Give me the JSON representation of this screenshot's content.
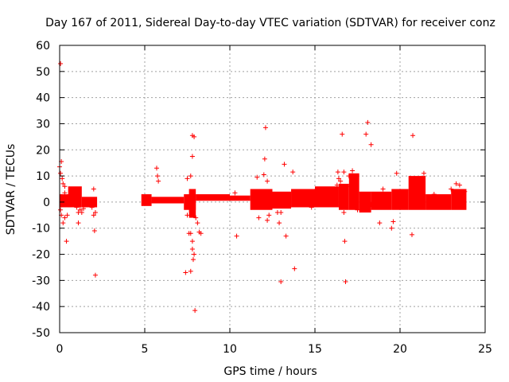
{
  "chart_data": {
    "type": "scatter",
    "title": "Day 167 of 2011, Sidereal Day-to-day VTEC variation (SDTVAR) for receiver conz",
    "xlabel": "GPS time / hours",
    "ylabel": "SDTVAR / TECUs",
    "xlim": [
      0,
      25
    ],
    "ylim": [
      -50,
      60
    ],
    "xticks": [
      0,
      5,
      10,
      15,
      20,
      25
    ],
    "yticks": [
      -50,
      -40,
      -30,
      -20,
      -10,
      0,
      10,
      20,
      30,
      40,
      50,
      60
    ],
    "grid": true,
    "marker": "+",
    "colors": {
      "series": "#ff0000",
      "grid": "#a0a0a0",
      "axes": "#000000",
      "background": "#ffffff"
    },
    "dense_bands": [
      {
        "x": [
          0.0,
          0.7
        ],
        "ymin": -2,
        "ymax": 3
      },
      {
        "x": [
          0.5,
          1.3
        ],
        "ymin": -2,
        "ymax": 6
      },
      {
        "x": [
          1.3,
          2.2
        ],
        "ymin": -2,
        "ymax": 2
      },
      {
        "x": [
          4.8,
          5.4
        ],
        "ymin": -1.5,
        "ymax": 3
      },
      {
        "x": [
          5.4,
          7.3
        ],
        "ymin": -0.5,
        "ymax": 2
      },
      {
        "x": [
          7.3,
          8.0
        ],
        "ymin": -3,
        "ymax": 3
      },
      {
        "x": [
          7.6,
          8.0
        ],
        "ymin": -6,
        "ymax": 5
      },
      {
        "x": [
          8.0,
          10.0
        ],
        "ymin": 0.5,
        "ymax": 3
      },
      {
        "x": [
          10.0,
          11.2
        ],
        "ymin": 0.5,
        "ymax": 2.5
      },
      {
        "x": [
          11.2,
          12.5
        ],
        "ymin": -3,
        "ymax": 5
      },
      {
        "x": [
          12.5,
          13.6
        ],
        "ymin": -2.5,
        "ymax": 4
      },
      {
        "x": [
          13.6,
          15.0
        ],
        "ymin": -2,
        "ymax": 5
      },
      {
        "x": [
          15.0,
          16.4
        ],
        "ymin": -2,
        "ymax": 6
      },
      {
        "x": [
          16.4,
          17.0
        ],
        "ymin": -3,
        "ymax": 7
      },
      {
        "x": [
          17.0,
          17.6
        ],
        "ymin": -3,
        "ymax": 11
      },
      {
        "x": [
          17.6,
          18.3
        ],
        "ymin": -4,
        "ymax": 4
      },
      {
        "x": [
          18.3,
          19.5
        ],
        "ymin": -3,
        "ymax": 4
      },
      {
        "x": [
          19.5,
          20.5
        ],
        "ymin": -3,
        "ymax": 5
      },
      {
        "x": [
          20.5,
          21.5
        ],
        "ymin": -3,
        "ymax": 10
      },
      {
        "x": [
          21.5,
          23.0
        ],
        "ymin": -3,
        "ymax": 3
      },
      {
        "x": [
          23.0,
          23.9
        ],
        "ymin": -3,
        "ymax": 5
      }
    ],
    "points": [
      [
        0.05,
        53
      ],
      [
        0.0,
        13.5
      ],
      [
        0.1,
        15.5
      ],
      [
        0.05,
        11
      ],
      [
        0.15,
        9
      ],
      [
        0.2,
        7
      ],
      [
        0.3,
        6
      ],
      [
        0.05,
        -3
      ],
      [
        0.1,
        -5
      ],
      [
        0.2,
        -8
      ],
      [
        0.3,
        -6
      ],
      [
        0.4,
        -15
      ],
      [
        0.45,
        -5
      ],
      [
        0.3,
        3.5
      ],
      [
        1.0,
        -2
      ],
      [
        1.1,
        -4
      ],
      [
        1.2,
        -3
      ],
      [
        1.1,
        -8
      ],
      [
        1.3,
        -4
      ],
      [
        1.4,
        -2.5
      ],
      [
        1.9,
        -2
      ],
      [
        2.0,
        5
      ],
      [
        2.0,
        -5
      ],
      [
        2.05,
        -11
      ],
      [
        2.1,
        -4
      ],
      [
        2.1,
        -28
      ],
      [
        5.0,
        2
      ],
      [
        5.2,
        -0.5
      ],
      [
        5.7,
        13
      ],
      [
        5.75,
        10
      ],
      [
        5.8,
        8
      ],
      [
        7.5,
        9
      ],
      [
        7.5,
        -5
      ],
      [
        7.6,
        -12
      ],
      [
        7.8,
        25.5
      ],
      [
        7.8,
        17.5
      ],
      [
        7.9,
        25
      ],
      [
        7.7,
        10
      ],
      [
        7.7,
        -12
      ],
      [
        7.8,
        -15
      ],
      [
        7.8,
        -18
      ],
      [
        7.85,
        -22
      ],
      [
        7.7,
        -26.5
      ],
      [
        7.9,
        -20
      ],
      [
        7.95,
        -41.5
      ],
      [
        8.1,
        -8
      ],
      [
        8.2,
        -11.5
      ],
      [
        8.3,
        -12
      ],
      [
        7.4,
        -27
      ],
      [
        8.0,
        -6
      ],
      [
        10.4,
        -13
      ],
      [
        10.3,
        3.5
      ],
      [
        11.6,
        9.5
      ],
      [
        11.8,
        2.5
      ],
      [
        11.7,
        -6
      ],
      [
        12.0,
        10.5
      ],
      [
        12.05,
        16.5
      ],
      [
        12.1,
        28.5
      ],
      [
        12.2,
        2.5
      ],
      [
        12.2,
        8
      ],
      [
        12.3,
        -5
      ],
      [
        12.2,
        -7
      ],
      [
        12.8,
        -4
      ],
      [
        12.9,
        -8
      ],
      [
        13.0,
        -30.5
      ],
      [
        13.2,
        14.5
      ],
      [
        13.3,
        -13
      ],
      [
        13.0,
        -4
      ],
      [
        13.7,
        11.5
      ],
      [
        13.8,
        -25.5
      ],
      [
        13.9,
        3
      ],
      [
        14.3,
        2
      ],
      [
        14.8,
        -2
      ],
      [
        15.3,
        5
      ],
      [
        16.3,
        6.5
      ],
      [
        16.35,
        11.5
      ],
      [
        16.4,
        9
      ],
      [
        16.5,
        8
      ],
      [
        16.6,
        26
      ],
      [
        16.7,
        -4
      ],
      [
        16.75,
        -15
      ],
      [
        16.8,
        -30.5
      ],
      [
        16.7,
        11.5
      ],
      [
        16.9,
        6
      ],
      [
        17.0,
        10
      ],
      [
        17.2,
        12
      ],
      [
        17.4,
        8
      ],
      [
        17.5,
        -3
      ],
      [
        18.0,
        26
      ],
      [
        18.1,
        30.5
      ],
      [
        18.3,
        22
      ],
      [
        18.0,
        -2.5
      ],
      [
        18.3,
        -1
      ],
      [
        18.8,
        -8
      ],
      [
        19.0,
        5
      ],
      [
        19.5,
        -10
      ],
      [
        19.6,
        -7.5
      ],
      [
        19.8,
        11
      ],
      [
        19.9,
        3
      ],
      [
        20.3,
        1.5
      ],
      [
        20.7,
        -12.5
      ],
      [
        20.75,
        25.5
      ],
      [
        20.9,
        7
      ],
      [
        21.2,
        9
      ],
      [
        21.4,
        11
      ],
      [
        22.0,
        3
      ],
      [
        22.5,
        1
      ],
      [
        23.0,
        5
      ],
      [
        23.3,
        7
      ],
      [
        23.5,
        6.5
      ],
      [
        23.8,
        4
      ]
    ]
  }
}
